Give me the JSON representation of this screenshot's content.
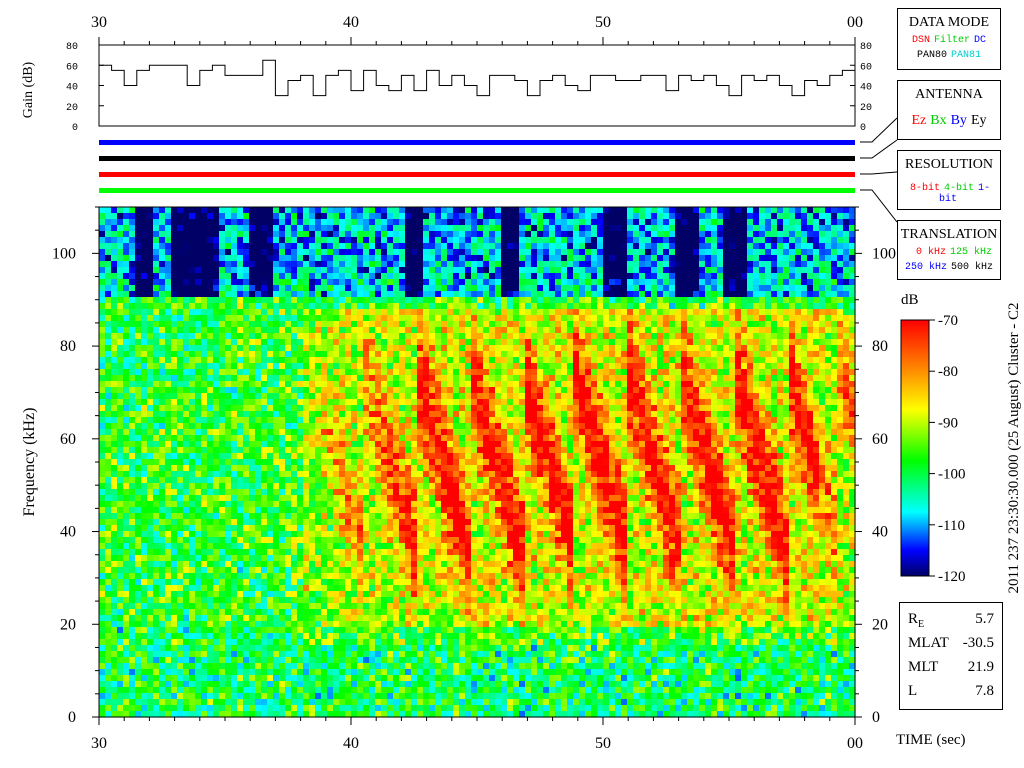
{
  "panel": {
    "ylabel_gain": "Gain (dB)",
    "gain_ticks": [
      "80",
      "60",
      "40",
      "20",
      "0"
    ],
    "time_ticks": [
      "30",
      "40",
      "50",
      "00"
    ],
    "xlabel": "TIME (sec)"
  },
  "legend": {
    "data_mode": {
      "title": "DATA MODE",
      "items": [
        {
          "text": "DSN",
          "color": "#ff0000"
        },
        {
          "text": "Filter",
          "color": "#00cc00"
        },
        {
          "text": "DC",
          "color": "#0000ff"
        }
      ],
      "items2": [
        {
          "text": "PAN80",
          "color": "#000000"
        },
        {
          "text": "PAN81",
          "color": "#00cccc"
        }
      ]
    },
    "antenna": {
      "title": "ANTENNA",
      "items": [
        {
          "text": "Ez",
          "color": "#ff0000"
        },
        {
          "text": "Bx",
          "color": "#00cc00"
        },
        {
          "text": "By",
          "color": "#0000ff"
        },
        {
          "text": "Ey",
          "color": "#000000"
        }
      ]
    },
    "resolution": {
      "title": "RESOLUTION",
      "items": [
        {
          "text": "8-bit",
          "color": "#ff0000"
        },
        {
          "text": "4-bit",
          "color": "#00cc00"
        },
        {
          "text": "1-bit",
          "color": "#0000ff"
        }
      ]
    },
    "translation": {
      "title": "TRANSLATION",
      "items": [
        {
          "text": "0 kHz",
          "color": "#ff0000"
        },
        {
          "text": "125 kHz",
          "color": "#00cc00"
        }
      ],
      "items2": [
        {
          "text": "250 kHz",
          "color": "#0000ff"
        },
        {
          "text": "500 kHz",
          "color": "#000000"
        }
      ]
    }
  },
  "status_bars": [
    {
      "name": "data-mode",
      "color": "#0000ff"
    },
    {
      "name": "antenna",
      "color": "#000000"
    },
    {
      "name": "resolution",
      "color": "#ff0000"
    },
    {
      "name": "translation",
      "color": "#00ff00"
    }
  ],
  "colorbar": {
    "unit": "dB",
    "ticks": [
      "-70",
      "-80",
      "-90",
      "-100",
      "-110",
      "-120"
    ],
    "range": [
      -120,
      -70
    ],
    "side_label": "2011 237 23:30:30.000 (25 August)   Cluster - C2"
  },
  "orbit": {
    "rows": [
      {
        "label": "R",
        "sub": "E",
        "value": "5.7"
      },
      {
        "label": "MLAT",
        "sub": "",
        "value": "-30.5"
      },
      {
        "label": "MLT",
        "sub": "",
        "value": "21.9"
      },
      {
        "label": "L",
        "sub": "",
        "value": "7.8"
      }
    ]
  },
  "chart_data": {
    "type": "heatmap",
    "title": "",
    "xlabel": "TIME (sec)",
    "ylabel": "Frequency (kHz)",
    "x_ticks": [
      "30",
      "40",
      "50",
      "00"
    ],
    "x_range": [
      30,
      60
    ],
    "y_ticks": [
      0,
      20,
      40,
      60,
      80,
      100
    ],
    "y_range": [
      0,
      110
    ],
    "color_range_db": [
      -120,
      -70
    ],
    "gain_series": {
      "ylabel": "Gain (dB)",
      "ylim": [
        0,
        80
      ],
      "x": [
        30,
        30.5,
        31,
        31.5,
        32,
        33,
        33.5,
        34,
        34.5,
        35,
        36,
        36.5,
        37,
        37.5,
        38,
        38.5,
        39,
        39.5,
        40,
        40.5,
        41,
        41.5,
        42,
        42.5,
        43,
        43.5,
        44,
        44.5,
        45,
        45.5,
        46,
        46.5,
        47,
        47.5,
        48,
        48.5,
        49,
        49.5,
        50,
        50.5,
        51,
        51.5,
        52,
        52.5,
        53,
        53.5,
        54,
        54.5,
        55,
        55.5,
        56,
        56.5,
        57,
        57.5,
        58,
        58.5,
        59,
        59.5,
        60
      ],
      "values": [
        60,
        55,
        40,
        55,
        60,
        60,
        40,
        55,
        60,
        50,
        50,
        65,
        30,
        45,
        50,
        30,
        50,
        55,
        35,
        55,
        40,
        35,
        50,
        35,
        55,
        40,
        50,
        40,
        30,
        50,
        50,
        45,
        30,
        45,
        50,
        40,
        35,
        50,
        50,
        45,
        45,
        50,
        50,
        35,
        50,
        45,
        50,
        40,
        30,
        50,
        45,
        50,
        40,
        30,
        45,
        40,
        50,
        55,
        40
      ]
    },
    "description_of_values": "Spectrogram intensity in dB; intense emission (-70 dB) bands 15-85 kHz between ~38 s and 59 s, weak (-120 dB) above ~95 kHz near 31-36 s"
  }
}
